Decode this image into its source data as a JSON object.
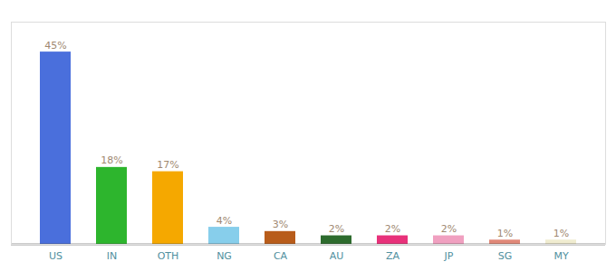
{
  "chart_data": {
    "type": "bar",
    "categories": [
      "US",
      "IN",
      "OTH",
      "NG",
      "CA",
      "AU",
      "ZA",
      "JP",
      "SG",
      "MY"
    ],
    "values": [
      45,
      18,
      17,
      4,
      3,
      2,
      2,
      2,
      1,
      1
    ],
    "value_labels": [
      "45%",
      "18%",
      "17%",
      "4%",
      "3%",
      "2%",
      "2%",
      "2%",
      "1%",
      "1%"
    ],
    "colors": [
      "#4a6fdc",
      "#2db52d",
      "#f5a800",
      "#87ceeb",
      "#b85c1a",
      "#2d6b2d",
      "#e8317a",
      "#f0a0c0",
      "#e08878",
      "#f0ecd0"
    ],
    "data_labels": true,
    "ylim": [
      0,
      52
    ],
    "tick_labels": "x"
  }
}
